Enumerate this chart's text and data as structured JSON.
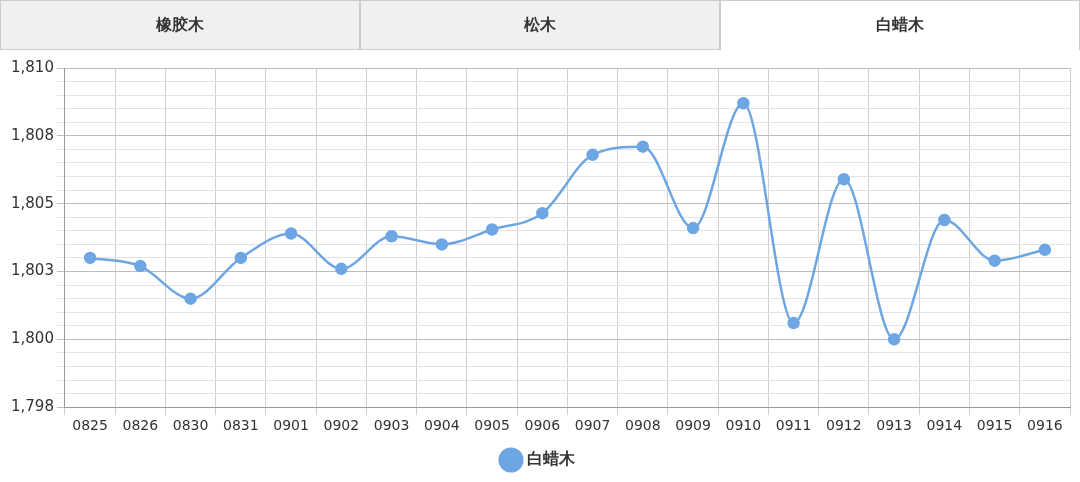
{
  "chart_data": {
    "type": "line",
    "annotations": [
      "橡胶木",
      "松木",
      "白蜡木"
    ],
    "categories": [
      "0825",
      "0826",
      "0830",
      "0831",
      "0901",
      "0902",
      "0903",
      "0904",
      "0905",
      "0906",
      "0907",
      "0908",
      "0909",
      "0910",
      "0911",
      "0912",
      "0913",
      "0914",
      "0915",
      "0916"
    ],
    "series": [
      {
        "name": "白蜡木",
        "color": "#6ea6e4",
        "values": [
          1803.0,
          1802.7,
          1801.5,
          1803.0,
          1803.9,
          1802.6,
          1803.8,
          1803.5,
          1804.05,
          1804.65,
          1806.8,
          1807.1,
          1804.1,
          1808.7,
          1800.6,
          1805.9,
          1800.0,
          1804.4,
          1802.9,
          1803.3
        ]
      }
    ],
    "ylim": [
      1797.5,
      1810
    ],
    "yticks": [
      {
        "value": 1797.5,
        "label": "1,798"
      },
      {
        "value": 1798,
        "label": null
      },
      {
        "value": 1798.5,
        "label": null
      },
      {
        "value": 1799,
        "label": null
      },
      {
        "value": 1799.5,
        "label": null
      },
      {
        "value": 1800,
        "label": "1,800"
      },
      {
        "value": 1800.5,
        "label": null
      },
      {
        "value": 1801,
        "label": null
      },
      {
        "value": 1801.5,
        "label": null
      },
      {
        "value": 1802,
        "label": null
      },
      {
        "value": 1802.5,
        "label": "1,803"
      },
      {
        "value": 1803,
        "label": null
      },
      {
        "value": 1803.5,
        "label": null
      },
      {
        "value": 1804,
        "label": null
      },
      {
        "value": 1804.5,
        "label": null
      },
      {
        "value": 1805,
        "label": "1,805"
      },
      {
        "value": 1805.5,
        "label": null
      },
      {
        "value": 1806,
        "label": null
      },
      {
        "value": 1806.5,
        "label": null
      },
      {
        "value": 1807,
        "label": null
      },
      {
        "value": 1807.5,
        "label": "1,808"
      },
      {
        "value": 1808,
        "label": null
      },
      {
        "value": 1808.5,
        "label": null
      },
      {
        "value": 1809,
        "label": null
      },
      {
        "value": 1809.5,
        "label": null
      },
      {
        "value": 1810,
        "label": "1,810"
      }
    ],
    "grid": true,
    "legend": "bottom",
    "marker": "circle",
    "line_style": "solid"
  }
}
